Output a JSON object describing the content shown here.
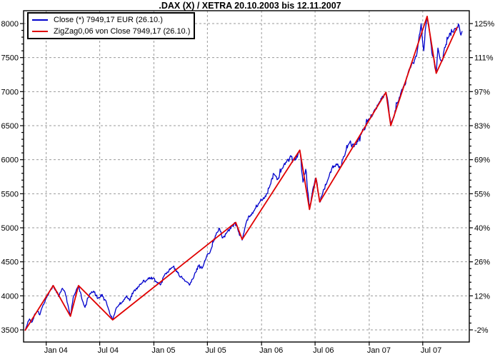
{
  "title": ".DAX (X) / XETRA 20.10.2003 bis 12.11.2007",
  "legend": {
    "close_label": "Close (*) 7949,17 EUR (26.10.)",
    "zigzag_label": "ZigZag0,06 von Close 7949,17 (26.10.)"
  },
  "chart_data": {
    "type": "line",
    "title": ".DAX (X) / XETRA 20.10.2003 bis 12.11.2007",
    "x_domain": [
      2003.803,
      2007.863
    ],
    "ylim": [
      3320,
      8190
    ],
    "grid": true,
    "legend_position": "top-left",
    "colors": {
      "close": "#0000cc",
      "zigzag": "#e00000",
      "grid": "#999999",
      "axis": "#000000"
    },
    "x_ticks": [
      {
        "t": 2004.0,
        "label": "Jan 04"
      },
      {
        "t": 2004.497,
        "label": "Jul 04"
      },
      {
        "t": 2005.0,
        "label": "Jan 05"
      },
      {
        "t": 2005.497,
        "label": "Jul 05"
      },
      {
        "t": 2006.0,
        "label": "Jan 06"
      },
      {
        "t": 2006.497,
        "label": "Jul 06"
      },
      {
        "t": 2007.0,
        "label": "Jan 07"
      },
      {
        "t": 2007.497,
        "label": "Jul 07"
      }
    ],
    "y_ticks": [
      {
        "value": 3500,
        "label": "3500",
        "pct": "-2%"
      },
      {
        "value": 4000,
        "label": "4000",
        "pct": "12%"
      },
      {
        "value": 4500,
        "label": "4500",
        "pct": "26%"
      },
      {
        "value": 5000,
        "label": "5000",
        "pct": "40%"
      },
      {
        "value": 5500,
        "label": "5500",
        "pct": "55%"
      },
      {
        "value": 6000,
        "label": "6000",
        "pct": "69%"
      },
      {
        "value": 6500,
        "label": "6500",
        "pct": "83%"
      },
      {
        "value": 7000,
        "label": "7000",
        "pct": "97%"
      },
      {
        "value": 7500,
        "label": "7500",
        "pct": "111%"
      },
      {
        "value": 8000,
        "label": "8000",
        "pct": "125%"
      }
    ],
    "minor_tick_step": 100,
    "series": [
      {
        "name": "Close",
        "color": "#0000cc",
        "last_value": "7949,17 EUR (26.10.)",
        "points": [
          [
            2003.803,
            3490
          ],
          [
            2003.82,
            3560
          ],
          [
            2003.845,
            3660
          ],
          [
            2003.865,
            3610
          ],
          [
            2003.89,
            3720
          ],
          [
            2003.915,
            3770
          ],
          [
            2003.94,
            3720
          ],
          [
            2003.965,
            3840
          ],
          [
            2004.0,
            3965
          ],
          [
            2004.03,
            4060
          ],
          [
            2004.065,
            4150
          ],
          [
            2004.09,
            4080
          ],
          [
            2004.12,
            4000
          ],
          [
            2004.15,
            4110
          ],
          [
            2004.175,
            4050
          ],
          [
            2004.2,
            3880
          ],
          [
            2004.225,
            3700
          ],
          [
            2004.25,
            3970
          ],
          [
            2004.275,
            4060
          ],
          [
            2004.3,
            4150
          ],
          [
            2004.33,
            3960
          ],
          [
            2004.36,
            3830
          ],
          [
            2004.4,
            4010
          ],
          [
            2004.44,
            4070
          ],
          [
            2004.48,
            3960
          ],
          [
            2004.52,
            4020
          ],
          [
            2004.56,
            3900
          ],
          [
            2004.59,
            3740
          ],
          [
            2004.617,
            3647
          ],
          [
            2004.65,
            3820
          ],
          [
            2004.68,
            3870
          ],
          [
            2004.71,
            3920
          ],
          [
            2004.745,
            4000
          ],
          [
            2004.775,
            3930
          ],
          [
            2004.81,
            4060
          ],
          [
            2004.85,
            4130
          ],
          [
            2004.89,
            4190
          ],
          [
            2004.93,
            4230
          ],
          [
            2004.96,
            4271
          ],
          [
            2005.0,
            4254
          ],
          [
            2005.03,
            4190
          ],
          [
            2005.06,
            4160
          ],
          [
            2005.1,
            4310
          ],
          [
            2005.14,
            4370
          ],
          [
            2005.18,
            4428
          ],
          [
            2005.22,
            4340
          ],
          [
            2005.27,
            4250
          ],
          [
            2005.3,
            4210
          ],
          [
            2005.33,
            4157
          ],
          [
            2005.37,
            4270
          ],
          [
            2005.41,
            4440
          ],
          [
            2005.45,
            4410
          ],
          [
            2005.49,
            4580
          ],
          [
            2005.53,
            4680
          ],
          [
            2005.57,
            4880
          ],
          [
            2005.61,
            4990
          ],
          [
            2005.635,
            4850
          ],
          [
            2005.67,
            4910
          ],
          [
            2005.71,
            5000
          ],
          [
            2005.755,
            5070
          ],
          [
            2005.79,
            4930
          ],
          [
            2005.82,
            4820
          ],
          [
            2005.86,
            5090
          ],
          [
            2005.9,
            5190
          ],
          [
            2005.945,
            5290
          ],
          [
            2006.0,
            5408
          ],
          [
            2006.04,
            5460
          ],
          [
            2006.08,
            5630
          ],
          [
            2006.115,
            5790
          ],
          [
            2006.15,
            5710
          ],
          [
            2006.19,
            5870
          ],
          [
            2006.23,
            5960
          ],
          [
            2006.27,
            6060
          ],
          [
            2006.31,
            5990
          ],
          [
            2006.355,
            6140
          ],
          [
            2006.385,
            5670
          ],
          [
            2006.41,
            5860
          ],
          [
            2006.445,
            5270
          ],
          [
            2006.475,
            5560
          ],
          [
            2006.505,
            5729
          ],
          [
            2006.54,
            5380
          ],
          [
            2006.575,
            5560
          ],
          [
            2006.61,
            5680
          ],
          [
            2006.65,
            5860
          ],
          [
            2006.69,
            5930
          ],
          [
            2006.73,
            5880
          ],
          [
            2006.78,
            6110
          ],
          [
            2006.82,
            6260
          ],
          [
            2006.86,
            6190
          ],
          [
            2006.9,
            6300
          ],
          [
            2006.945,
            6430
          ],
          [
            2007.0,
            6597
          ],
          [
            2007.04,
            6700
          ],
          [
            2007.08,
            6800
          ],
          [
            2007.115,
            6900
          ],
          [
            2007.155,
            6990
          ],
          [
            2007.175,
            6840
          ],
          [
            2007.2,
            6500
          ],
          [
            2007.24,
            6720
          ],
          [
            2007.28,
            6920
          ],
          [
            2007.32,
            7080
          ],
          [
            2007.355,
            7230
          ],
          [
            2007.39,
            7380
          ],
          [
            2007.42,
            7460
          ],
          [
            2007.445,
            7580
          ],
          [
            2007.465,
            7830
          ],
          [
            2007.482,
            8000
          ],
          [
            2007.495,
            7750
          ],
          [
            2007.507,
            7600
          ],
          [
            2007.52,
            7900
          ],
          [
            2007.538,
            8106
          ],
          [
            2007.553,
            7990
          ],
          [
            2007.567,
            7790
          ],
          [
            2007.582,
            7570
          ],
          [
            2007.6,
            7470
          ],
          [
            2007.61,
            7350
          ],
          [
            2007.622,
            7270
          ],
          [
            2007.638,
            7640
          ],
          [
            2007.658,
            7480
          ],
          [
            2007.678,
            7450
          ],
          [
            2007.7,
            7650
          ],
          [
            2007.735,
            7800
          ],
          [
            2007.77,
            7880
          ],
          [
            2007.8,
            7930
          ],
          [
            2007.817,
            7949
          ],
          [
            2007.828,
            7995
          ],
          [
            2007.842,
            7900
          ],
          [
            2007.852,
            7830
          ],
          [
            2007.863,
            7890
          ]
        ]
      },
      {
        "name": "ZigZag0,06 von Close",
        "color": "#e00000",
        "last_value": "7949,17 (26.10.)",
        "points": [
          [
            2003.803,
            3490
          ],
          [
            2004.065,
            4150
          ],
          [
            2004.225,
            3700
          ],
          [
            2004.3,
            4150
          ],
          [
            2004.617,
            3647
          ],
          [
            2005.76,
            5080
          ],
          [
            2005.82,
            4830
          ],
          [
            2006.355,
            6140
          ],
          [
            2006.445,
            5270
          ],
          [
            2006.505,
            5729
          ],
          [
            2006.54,
            5380
          ],
          [
            2007.155,
            6990
          ],
          [
            2007.2,
            6500
          ],
          [
            2007.538,
            8106
          ],
          [
            2007.622,
            7270
          ],
          [
            2007.817,
            7949.17
          ]
        ]
      }
    ]
  }
}
